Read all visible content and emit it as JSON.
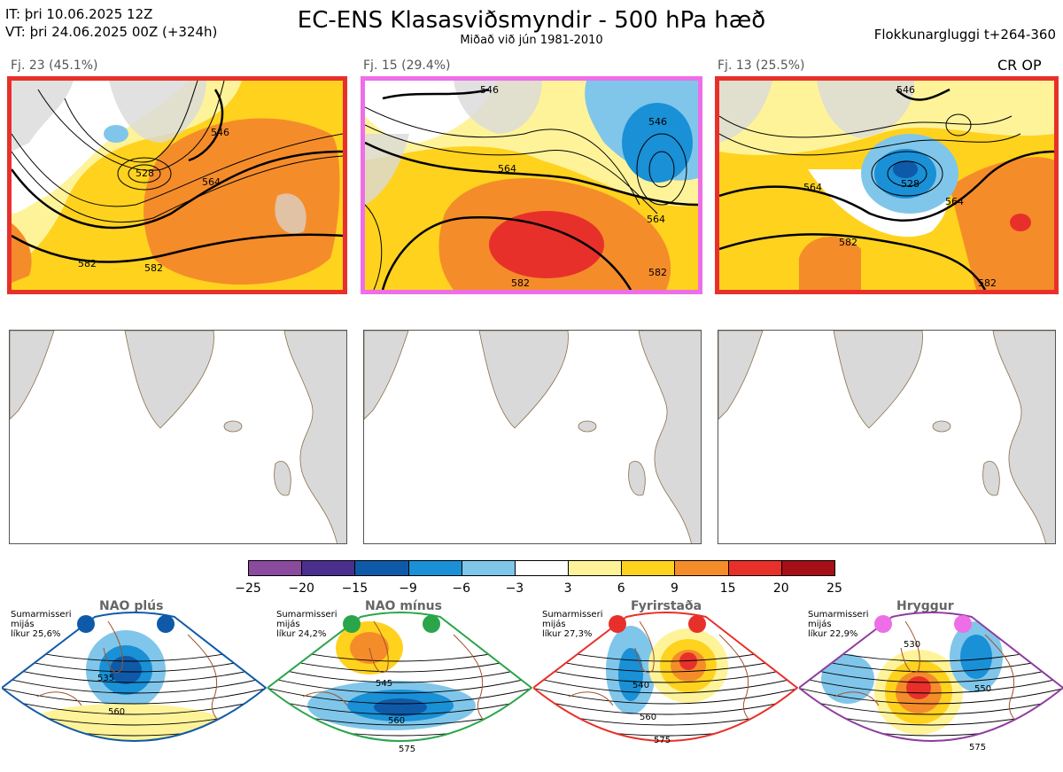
{
  "header": {
    "it_line": "IT: þri 10.06.2025 12Z",
    "vt_line": "VT: þri 24.06.2025 00Z  (+324h)",
    "title": "EC-ENS Klasasviðsmyndir - 500 hPa hæð",
    "subtitle": "Miðað við jún 1981-2010",
    "window": "Flokkunargluggi t+264-360"
  },
  "panels": [
    {
      "label": "Fj. 23 (45.1%)",
      "frame_color": "#e8302a",
      "contours": [
        "546",
        "528",
        "564",
        "582",
        "582"
      ]
    },
    {
      "label": "Fj. 15 (29.4%)",
      "frame_color": "#ee6ee8",
      "contours": [
        "546",
        "564",
        "546",
        "564",
        "582",
        "582"
      ]
    },
    {
      "label": "Fj. 13 (25.5%)",
      "frame_color": "#e8302a",
      "tag": "CR OP",
      "contours": [
        "546",
        "564",
        "528",
        "564",
        "582",
        "582"
      ]
    }
  ],
  "colors": {
    "land": "#d9d9d9",
    "coast": "#8a6e4b",
    "contour": "#000000"
  },
  "chart_data": {
    "type": "heatmap",
    "title": "EC-ENS Klasasviðsmyndir - 500 hPa hæð",
    "colorbar": {
      "ticks": [
        "−25",
        "−20",
        "−15",
        "−9",
        "−6",
        "−3",
        "3",
        "6",
        "9",
        "15",
        "20",
        "25"
      ],
      "colors": [
        "#8a4a9e",
        "#4a2f8f",
        "#0f5aa8",
        "#1a90d6",
        "#80c6ea",
        "#ffffff",
        "#fff39a",
        "#ffd21e",
        "#f58c2a",
        "#e8302a",
        "#a50f15"
      ]
    },
    "regimes": [
      {
        "name": "NAO plús",
        "note": [
          "Sumarmisseri",
          "mijás",
          "líkur 25,6%"
        ],
        "frame_color": "#0f5aa8",
        "dot_color": "#0f5aa8",
        "contours": [
          "535",
          "560"
        ]
      },
      {
        "name": "NAO mínus",
        "note": [
          "Sumarmisseri",
          "mijás",
          "líkur 24,2%"
        ],
        "frame_color": "#2aa54a",
        "dot_color": "#2aa54a",
        "contours": [
          "545",
          "560",
          "575"
        ]
      },
      {
        "name": "Fyrirstaða",
        "note": [
          "Sumarmisseri",
          "mijás",
          "líkur 27,3%"
        ],
        "frame_color": "#e8302a",
        "dot_color": "#e8302a",
        "contours": [
          "540",
          "560",
          "575"
        ]
      },
      {
        "name": "Hryggur",
        "note": [
          "Sumarmisseri",
          "mijás",
          "líkur 22,9%"
        ],
        "frame_color": "#8e3c9e",
        "dot_color": "#ee6ee8",
        "contours": [
          "530",
          "550",
          "575"
        ]
      }
    ]
  }
}
